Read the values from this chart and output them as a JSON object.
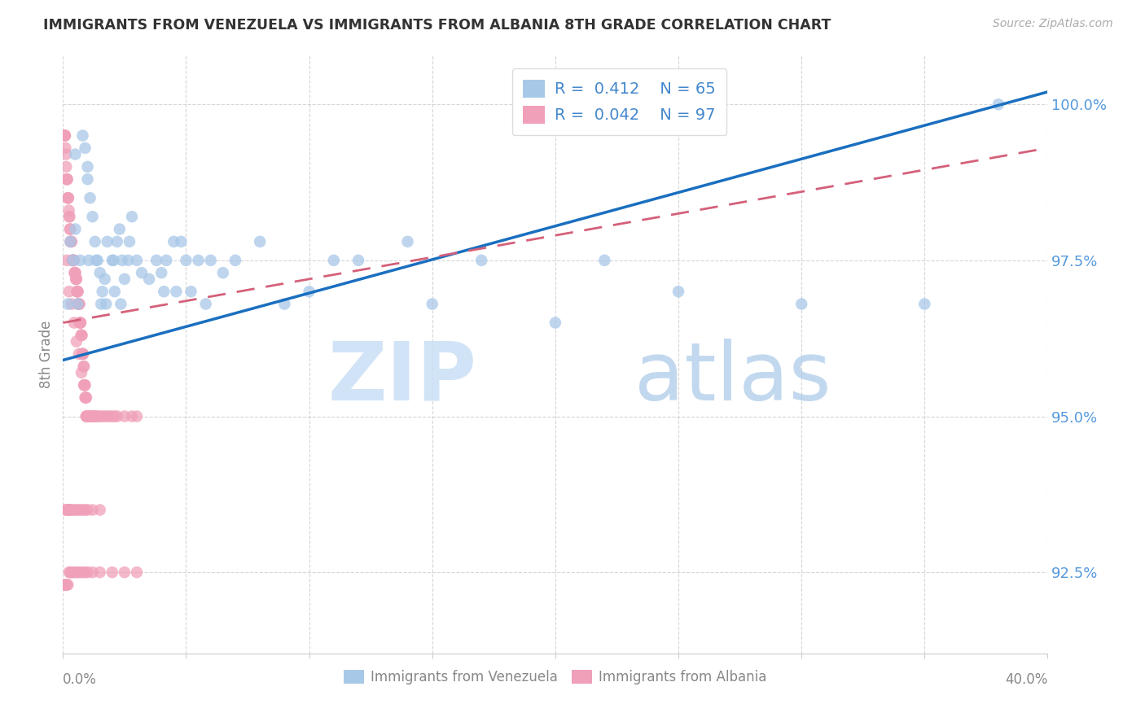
{
  "title": "IMMIGRANTS FROM VENEZUELA VS IMMIGRANTS FROM ALBANIA 8TH GRADE CORRELATION CHART",
  "source": "Source: ZipAtlas.com",
  "ylabel": "8th Grade",
  "yticks": [
    92.5,
    95.0,
    97.5,
    100.0
  ],
  "ytick_labels": [
    "92.5%",
    "95.0%",
    "97.5%",
    "100.0%"
  ],
  "xmin": 0.0,
  "xmax": 40.0,
  "ymin": 91.2,
  "ymax": 100.8,
  "color_venezuela": "#a8c8e8",
  "color_albania": "#f0a0b8",
  "color_line_venezuela": "#1a6fbf",
  "color_line_albania": "#d4607a",
  "ven_line_x0": 0.0,
  "ven_line_y0": 95.9,
  "ven_line_x1": 40.0,
  "ven_line_y1": 100.2,
  "alb_line_x0": 0.0,
  "alb_line_y0": 96.5,
  "alb_line_x1": 40.0,
  "alb_line_y1": 99.3,
  "venezuela_x": [
    0.3,
    0.5,
    0.5,
    0.7,
    0.8,
    0.9,
    1.0,
    1.0,
    1.1,
    1.2,
    1.3,
    1.4,
    1.5,
    1.6,
    1.7,
    1.8,
    2.0,
    2.1,
    2.2,
    2.3,
    2.4,
    2.5,
    2.7,
    2.8,
    3.0,
    3.2,
    3.5,
    3.8,
    4.0,
    4.2,
    4.5,
    4.8,
    5.0,
    5.5,
    6.0,
    6.5,
    7.0,
    8.0,
    9.0,
    10.0,
    11.0,
    12.0,
    14.0,
    15.0,
    17.0,
    20.0,
    22.0,
    25.0,
    30.0,
    35.0,
    38.0,
    0.2,
    0.4,
    0.6,
    1.05,
    1.35,
    1.55,
    1.75,
    2.05,
    2.35,
    2.65,
    4.1,
    4.6,
    5.2,
    5.8
  ],
  "venezuela_y": [
    97.8,
    99.2,
    98.0,
    97.5,
    99.5,
    99.3,
    99.0,
    98.8,
    98.5,
    98.2,
    97.8,
    97.5,
    97.3,
    97.0,
    97.2,
    97.8,
    97.5,
    97.0,
    97.8,
    98.0,
    97.5,
    97.2,
    97.8,
    98.2,
    97.5,
    97.3,
    97.2,
    97.5,
    97.3,
    97.5,
    97.8,
    97.8,
    97.5,
    97.5,
    97.5,
    97.3,
    97.5,
    97.8,
    96.8,
    97.0,
    97.5,
    97.5,
    97.8,
    96.8,
    97.5,
    96.5,
    97.5,
    97.0,
    96.8,
    96.8,
    100.0,
    96.8,
    97.5,
    96.8,
    97.5,
    97.5,
    96.8,
    96.8,
    97.5,
    96.8,
    97.5,
    97.0,
    97.0,
    97.0,
    96.8
  ],
  "albania_x": [
    0.05,
    0.07,
    0.08,
    0.09,
    0.1,
    0.12,
    0.13,
    0.15,
    0.16,
    0.18,
    0.2,
    0.2,
    0.22,
    0.24,
    0.25,
    0.27,
    0.28,
    0.3,
    0.3,
    0.32,
    0.33,
    0.35,
    0.37,
    0.38,
    0.4,
    0.4,
    0.42,
    0.44,
    0.45,
    0.47,
    0.48,
    0.5,
    0.5,
    0.52,
    0.54,
    0.55,
    0.57,
    0.58,
    0.6,
    0.6,
    0.62,
    0.64,
    0.65,
    0.67,
    0.68,
    0.7,
    0.7,
    0.72,
    0.74,
    0.75,
    0.77,
    0.78,
    0.8,
    0.8,
    0.82,
    0.84,
    0.85,
    0.87,
    0.88,
    0.9,
    0.9,
    0.92,
    0.94,
    0.95,
    0.97,
    0.98,
    1.0,
    1.0,
    1.05,
    1.05,
    1.1,
    1.15,
    1.2,
    1.25,
    1.3,
    1.4,
    1.5,
    1.6,
    1.7,
    1.8,
    1.9,
    2.0,
    2.1,
    2.2,
    2.5,
    2.8,
    3.0,
    0.15,
    0.25,
    0.35,
    0.45,
    0.55,
    0.65,
    0.75,
    0.85,
    0.95,
    1.35
  ],
  "albania_y": [
    99.5,
    99.5,
    99.5,
    99.5,
    99.3,
    99.2,
    99.0,
    98.8,
    98.8,
    98.8,
    98.5,
    98.5,
    98.5,
    98.3,
    98.2,
    98.2,
    98.0,
    98.0,
    97.8,
    97.8,
    97.8,
    97.8,
    97.5,
    97.5,
    97.5,
    97.5,
    97.5,
    97.5,
    97.5,
    97.3,
    97.3,
    97.3,
    97.3,
    97.2,
    97.2,
    97.2,
    97.0,
    97.0,
    97.0,
    97.0,
    96.8,
    96.8,
    96.8,
    96.8,
    96.5,
    96.5,
    96.5,
    96.5,
    96.3,
    96.3,
    96.3,
    96.0,
    96.0,
    96.0,
    96.0,
    95.8,
    95.8,
    95.5,
    95.5,
    95.5,
    95.3,
    95.3,
    95.0,
    95.0,
    95.0,
    95.0,
    95.0,
    95.0,
    95.0,
    95.0,
    95.0,
    95.0,
    95.0,
    95.0,
    95.0,
    95.0,
    95.0,
    95.0,
    95.0,
    95.0,
    95.0,
    95.0,
    95.0,
    95.0,
    95.0,
    95.0,
    95.0,
    97.5,
    97.0,
    96.8,
    96.5,
    96.2,
    96.0,
    95.7,
    95.5,
    95.3,
    95.0
  ],
  "albania_low_x": [
    0.05,
    0.08,
    0.1,
    0.15,
    0.2,
    0.25,
    0.3,
    0.35,
    0.4,
    0.5,
    0.6,
    0.7,
    0.8,
    0.9,
    1.0,
    1.2,
    1.5,
    2.0,
    2.5,
    3.0
  ],
  "albania_low_y": [
    92.3,
    92.3,
    92.3,
    92.3,
    92.3,
    92.5,
    92.5,
    92.5,
    92.5,
    92.5,
    92.5,
    92.5,
    92.5,
    92.5,
    92.5,
    92.5,
    92.5,
    92.5,
    92.5,
    92.5
  ],
  "albania_lowmid_x": [
    0.1,
    0.15,
    0.2,
    0.25,
    0.3,
    0.35,
    0.4,
    0.5,
    0.6,
    0.7,
    0.8,
    0.9,
    1.0,
    1.2,
    1.5
  ],
  "albania_lowmid_y": [
    93.5,
    93.5,
    93.5,
    93.5,
    93.5,
    93.5,
    93.5,
    93.5,
    93.5,
    93.5,
    93.5,
    93.5,
    93.5,
    93.5,
    93.5
  ]
}
